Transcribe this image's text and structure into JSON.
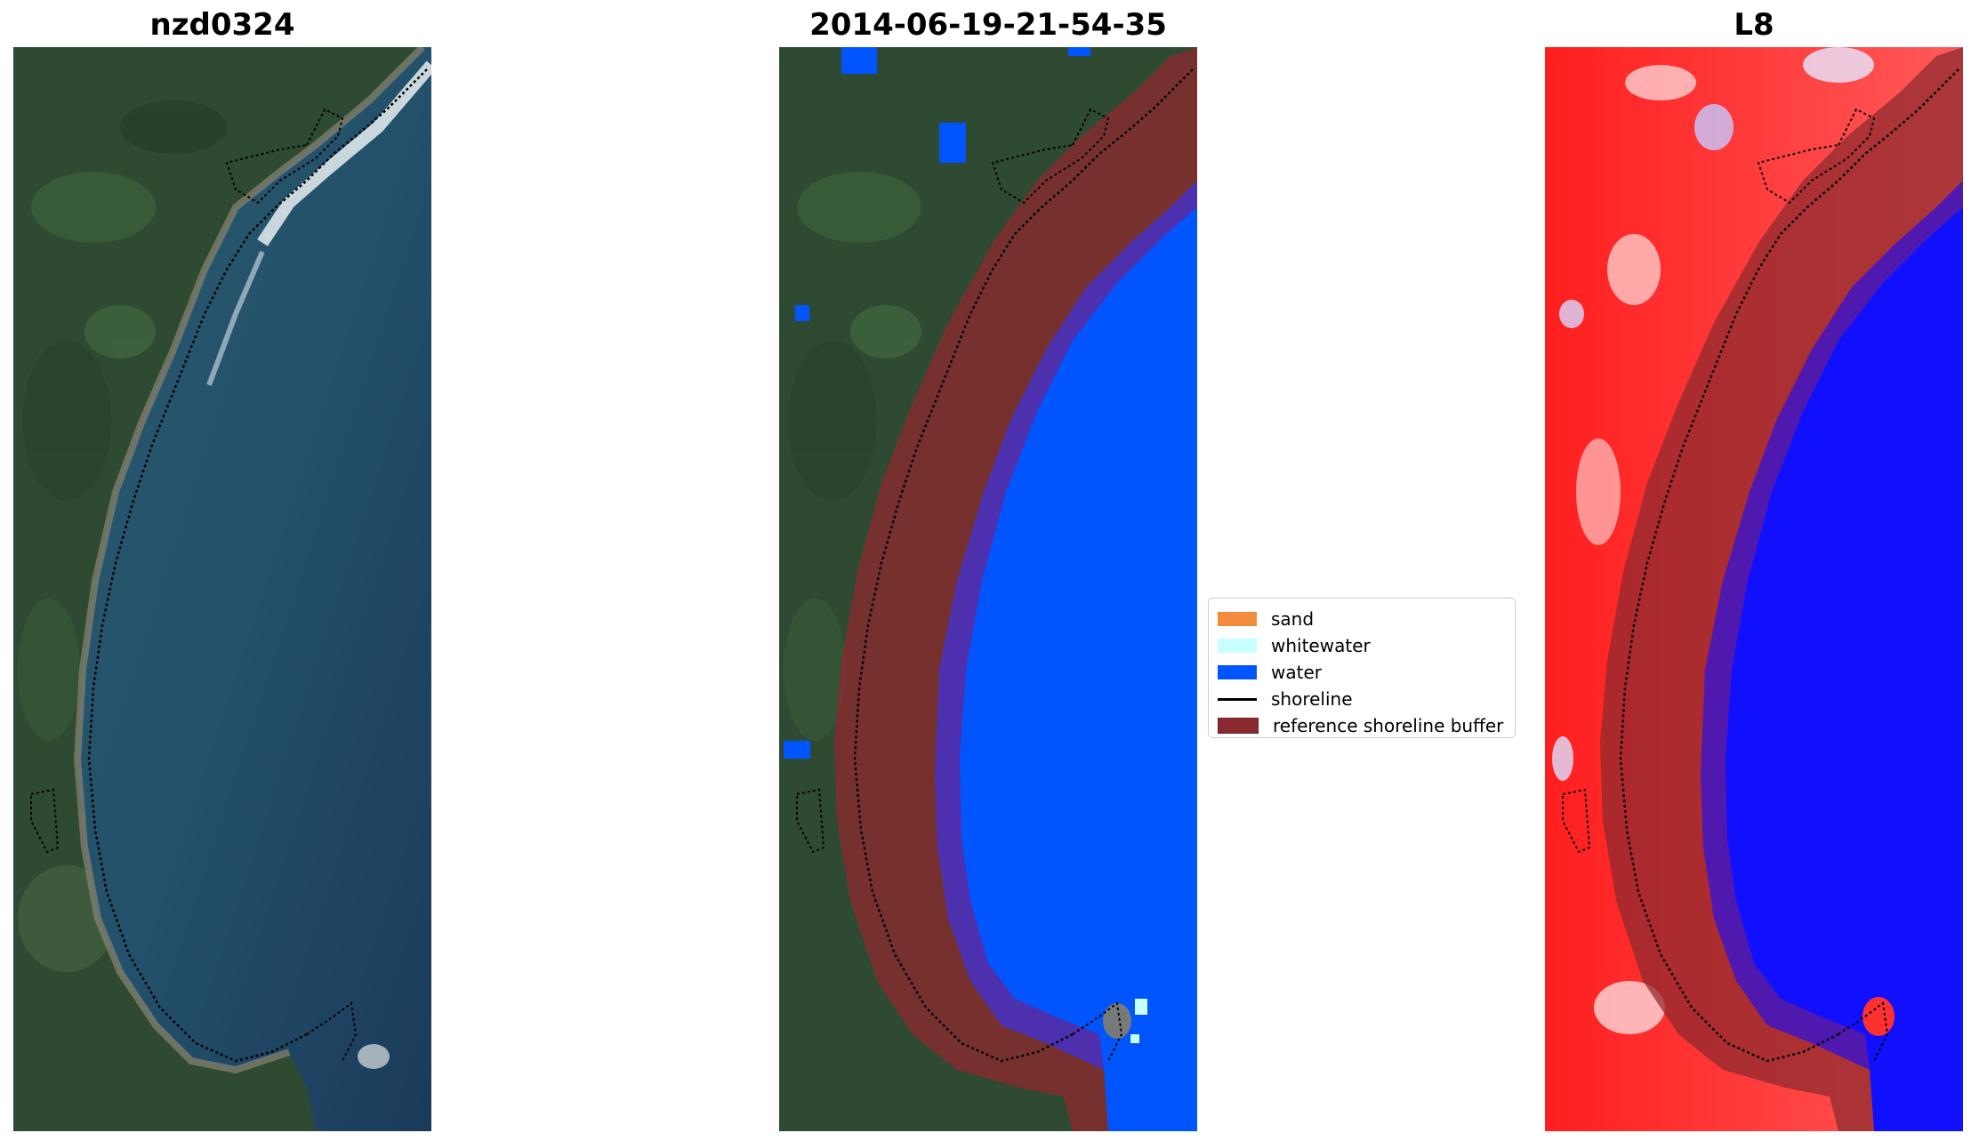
{
  "panels": [
    {
      "title": "nzd0324"
    },
    {
      "title": "2014-06-19-21-54-35"
    },
    {
      "title": "L8"
    }
  ],
  "legend": {
    "items": [
      {
        "label": "sand",
        "color": "#f38b3c"
      },
      {
        "label": "whitewater",
        "color": "#c8ffff"
      },
      {
        "label": "water",
        "color": "#0055ff"
      },
      {
        "label": "shoreline",
        "color": "#000000"
      },
      {
        "label": "reference shoreline buffer",
        "color": "#8b2a2e"
      }
    ]
  },
  "colors": {
    "land": "#2e4a33",
    "ocean": "#1e3f5c",
    "water_class": "#0055ff",
    "buffer": "#8b2a2e",
    "ndwi_land": "#ff2020",
    "ndwi_water": "#1010ff"
  }
}
